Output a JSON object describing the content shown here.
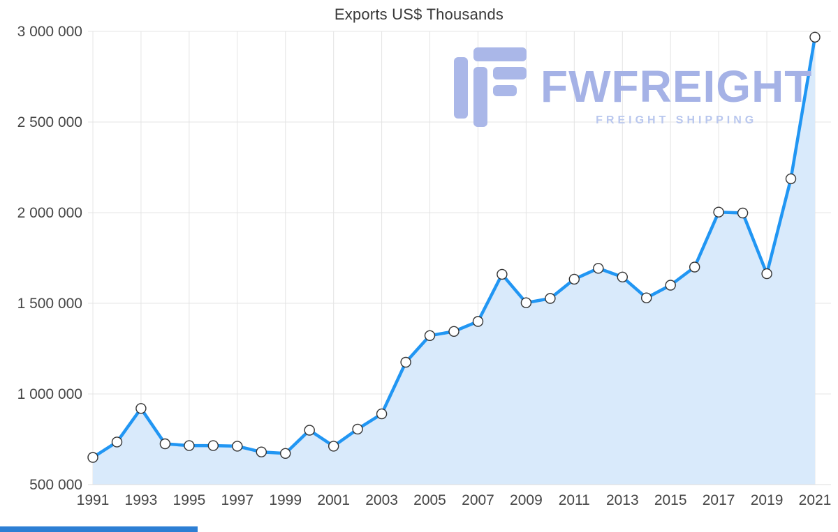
{
  "chart_data": {
    "type": "area",
    "title": "Exports US$ Thousands",
    "x": [
      1991,
      1992,
      1993,
      1994,
      1995,
      1996,
      1997,
      1998,
      1999,
      2000,
      2001,
      2002,
      2003,
      2004,
      2005,
      2006,
      2007,
      2008,
      2009,
      2010,
      2011,
      2012,
      2013,
      2014,
      2015,
      2016,
      2017,
      2018,
      2019,
      2020,
      2021
    ],
    "values": [
      650000,
      735000,
      920000,
      725000,
      715000,
      715000,
      712000,
      680000,
      672000,
      800000,
      712000,
      806000,
      890000,
      1175000,
      1322000,
      1345000,
      1400000,
      1660000,
      1503000,
      1527000,
      1633000,
      1693000,
      1645000,
      1530000,
      1600000,
      1700000,
      2003000,
      1998000,
      1663000,
      2187000,
      2968000
    ],
    "ylim": [
      500000,
      3000000
    ],
    "yticks": [
      500000,
      1000000,
      1500000,
      2000000,
      2500000,
      3000000
    ],
    "ytick_labels": [
      "500 000",
      "1 000 000",
      "1 500 000",
      "2 000 000",
      "2 500 000",
      "3 000 000"
    ],
    "xtick_years": [
      1991,
      1993,
      1995,
      1997,
      1999,
      2001,
      2003,
      2005,
      2007,
      2009,
      2011,
      2013,
      2015,
      2017,
      2019,
      2021
    ],
    "xtick_labels": [
      "1991",
      "1993",
      "1995",
      "1997",
      "1999",
      "2001",
      "2003",
      "2005",
      "2007",
      "2009",
      "2011",
      "2013",
      "2015",
      "2017",
      "2019",
      "2021"
    ],
    "grid": true,
    "legend": false,
    "line_color": "#2196f3",
    "fill_color": "#d9eafb",
    "marker_fill": "#ffffff",
    "marker_stroke": "#333333",
    "grid_color": "#e4e4e4",
    "axis_line_color": "#dcdcdc",
    "tick_color": "#454545"
  },
  "watermark": {
    "brand": "FWFREIGHT",
    "tagline": "FREIGHT SHIPPING",
    "logo_color": "#aab7e8"
  }
}
